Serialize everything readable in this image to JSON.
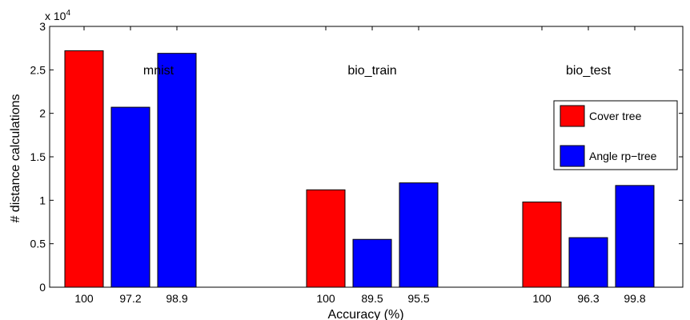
{
  "chart_data": {
    "type": "bar",
    "xlabel": "Accuracy (%)",
    "ylabel": "# distance calculations",
    "y_multiplier_label": "x 10",
    "y_multiplier_exp": "4",
    "ylim": [
      0,
      3
    ],
    "yticks": [
      "0",
      "0.5",
      "1",
      "1.5",
      "2",
      "2.5",
      "3"
    ],
    "grid": false,
    "legend_position": "right",
    "series": [
      {
        "name": "Cover tree",
        "color": "#ff0000"
      },
      {
        "name": "Angle rp−tree",
        "color": "#0000ff"
      }
    ],
    "groups": [
      {
        "name": "mnist",
        "bars": [
          {
            "label": "100",
            "series": "Cover tree",
            "value": 2.72
          },
          {
            "label": "97.2",
            "series": "Angle rp−tree",
            "value": 2.07
          },
          {
            "label": "98.9",
            "series": "Angle rp−tree",
            "value": 2.69
          }
        ]
      },
      {
        "name": "bio_train",
        "bars": [
          {
            "label": "100",
            "series": "Cover tree",
            "value": 1.12
          },
          {
            "label": "89.5",
            "series": "Angle rp−tree",
            "value": 0.55
          },
          {
            "label": "95.5",
            "series": "Angle rp−tree",
            "value": 1.2
          }
        ]
      },
      {
        "name": "bio_test",
        "bars": [
          {
            "label": "100",
            "series": "Cover tree",
            "value": 0.98
          },
          {
            "label": "96.3",
            "series": "Angle rp−tree",
            "value": 0.57
          },
          {
            "label": "99.8",
            "series": "Angle rp−tree",
            "value": 1.17
          }
        ]
      }
    ]
  }
}
